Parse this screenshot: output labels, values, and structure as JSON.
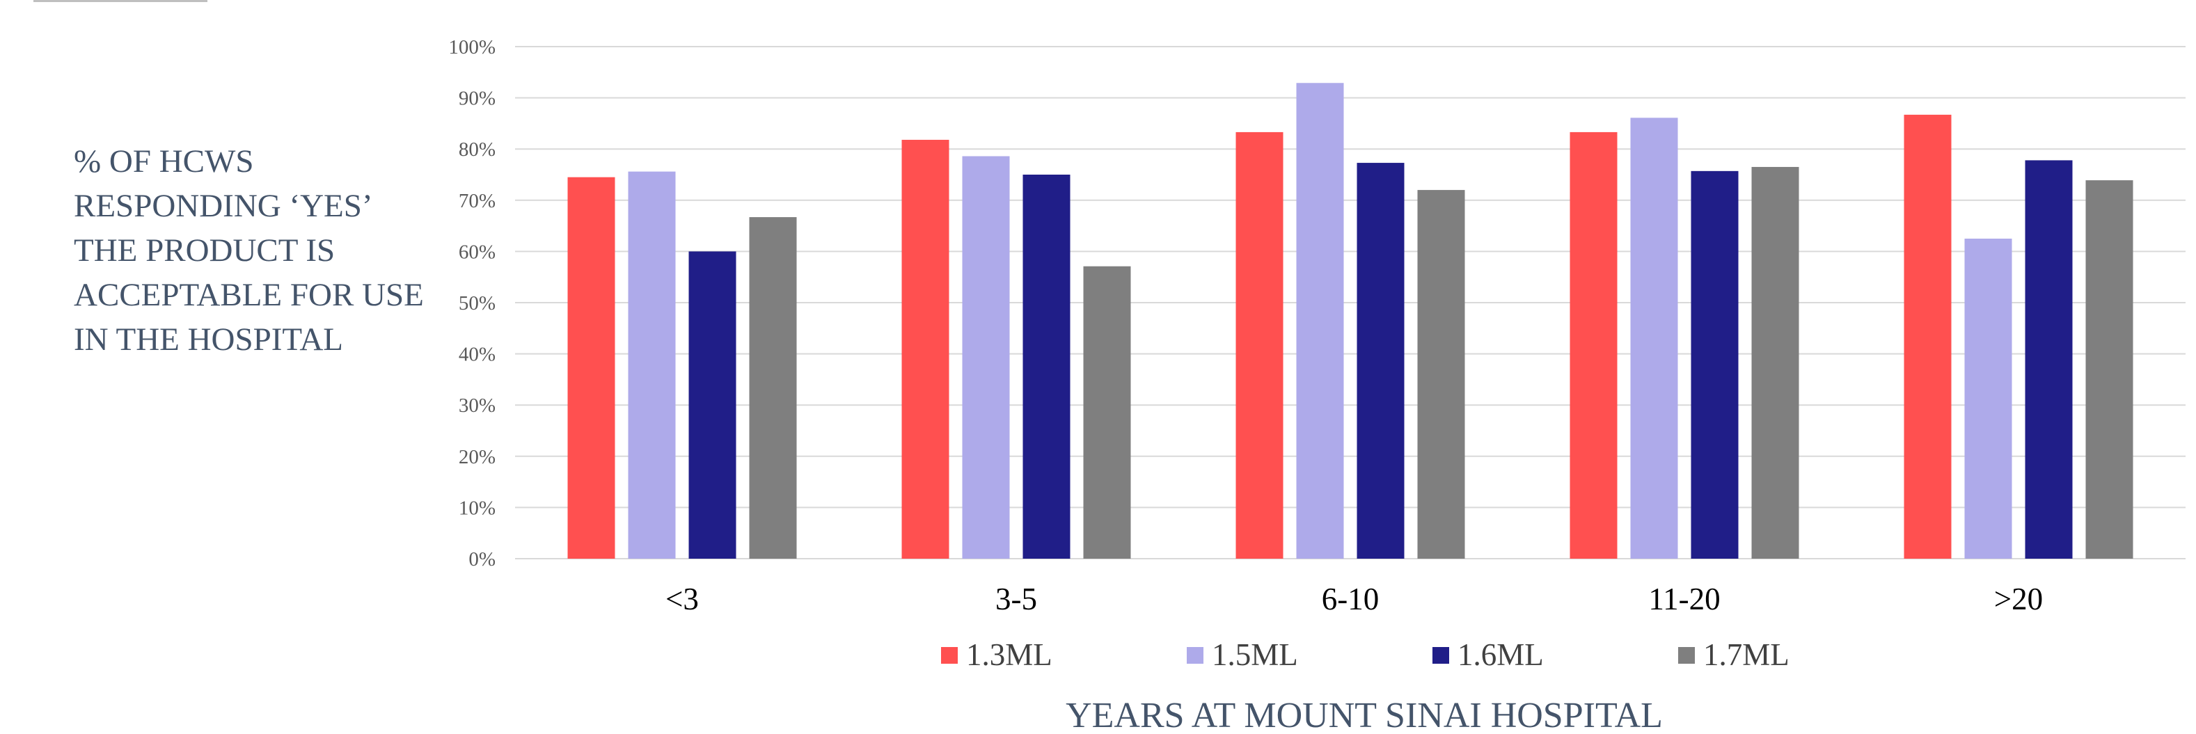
{
  "chart_data": {
    "type": "bar",
    "title": "",
    "ylabel": "% of HCWs responding ‘yes’ the product is acceptable for use in the hospital",
    "xlabel": "YEARS AT MOUNT SINAI HOSPITAL",
    "categories": [
      "<3",
      "3-5",
      "6-10",
      "11-20",
      ">20"
    ],
    "series": [
      {
        "name": "1.3ML",
        "color": "#ff5050",
        "values": [
          74.5,
          81.8,
          83.3,
          83.3,
          86.7
        ]
      },
      {
        "name": "1.5ML",
        "color": "#aeaaea",
        "values": [
          75.6,
          78.6,
          92.9,
          86.1,
          62.5
        ]
      },
      {
        "name": "1.6ML",
        "color": "#201e88",
        "values": [
          60.0,
          75.0,
          77.3,
          75.7,
          77.8
        ]
      },
      {
        "name": "1.7ML",
        "color": "#7f7f7f",
        "values": [
          66.7,
          57.1,
          72.0,
          76.5,
          73.9
        ]
      }
    ],
    "ylim": [
      0,
      100
    ],
    "yticks": [
      "0%",
      "10%",
      "20%",
      "30%",
      "40%",
      "50%",
      "60%",
      "70%",
      "80%",
      "90%",
      "100%"
    ],
    "grid": true,
    "legend_position": "bottom"
  }
}
